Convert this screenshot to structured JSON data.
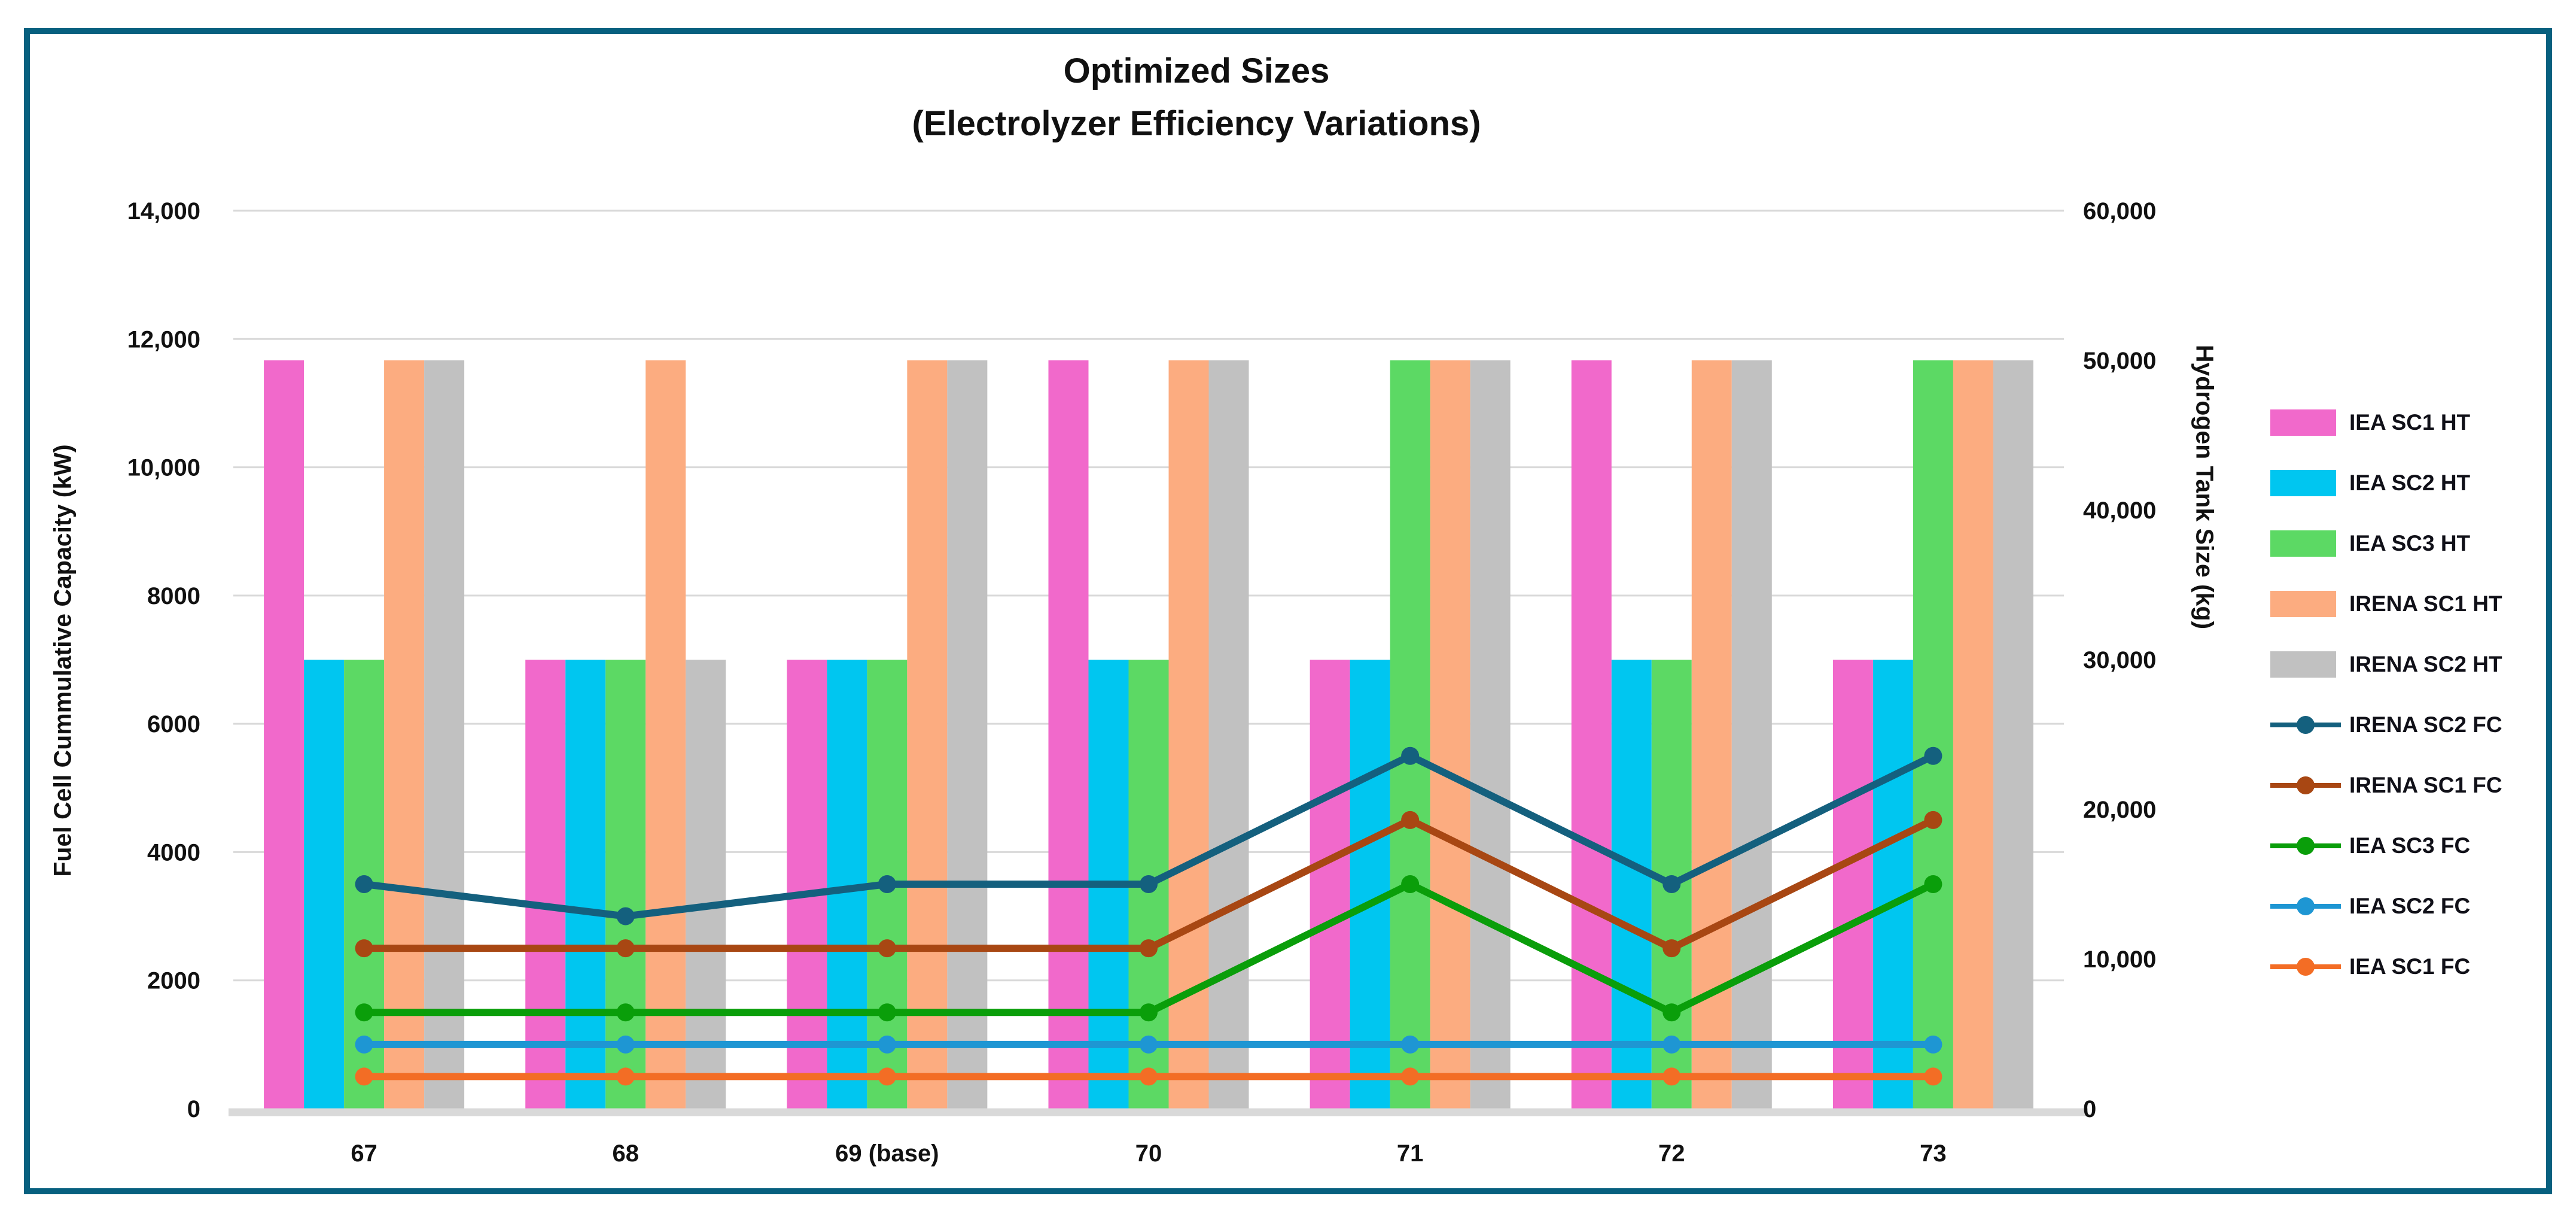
{
  "chart_data": {
    "type": "combo-bar-line",
    "title_line1": "Optimized Sizes",
    "title_line2": "(Electrolyzer Efficiency Variations)",
    "categories": [
      "67",
      "68",
      "69 (base)",
      "70",
      "71",
      "72",
      "73"
    ],
    "left_axis": {
      "label": "Fuel Cell Cummulative Capacity  (kW)",
      "min": 0,
      "max": 14000,
      "step": 2000,
      "tick_labels": [
        "0",
        "2000",
        "4000",
        "6000",
        "8000",
        "10,000",
        "12,000",
        "14,000"
      ]
    },
    "right_axis": {
      "label": "Hydrogen Tank Size (kg)",
      "min": 0,
      "max": 60000,
      "step": 10000,
      "tick_labels": [
        "0",
        "10,000",
        "20,000",
        "30,000",
        "40,000",
        "50,000",
        "60,000"
      ]
    },
    "grid": "horizontal-only",
    "legend_position": "right",
    "bar_series": [
      {
        "name": "IEA SC1 HT",
        "color": "#F169CB",
        "axis": "right",
        "values": [
          50000,
          30000,
          30000,
          50000,
          30000,
          50000,
          30000
        ]
      },
      {
        "name": "IEA SC2 HT",
        "color": "#00C6F0",
        "axis": "right",
        "values": [
          30000,
          30000,
          30000,
          30000,
          30000,
          30000,
          30000
        ]
      },
      {
        "name": "IEA SC3 HT",
        "color": "#5CD964",
        "axis": "right",
        "values": [
          30000,
          30000,
          30000,
          30000,
          50000,
          30000,
          50000
        ]
      },
      {
        "name": "IRENA SC1 HT",
        "color": "#FCAC80",
        "axis": "right",
        "values": [
          50000,
          50000,
          50000,
          50000,
          50000,
          50000,
          50000
        ]
      },
      {
        "name": "IRENA SC2 HT",
        "color": "#C1C1C1",
        "axis": "right",
        "values": [
          50000,
          30000,
          50000,
          50000,
          50000,
          50000,
          50000
        ]
      }
    ],
    "line_series": [
      {
        "name": "IRENA SC2 FC",
        "color": "#14607E",
        "axis": "left",
        "values": [
          3500,
          3000,
          3500,
          3500,
          5500,
          3500,
          5500
        ]
      },
      {
        "name": "IRENA SC1 FC",
        "color": "#A84713",
        "axis": "left",
        "values": [
          2500,
          2500,
          2500,
          2500,
          4500,
          2500,
          4500
        ]
      },
      {
        "name": "IEA SC3 FC",
        "color": "#0A9E0A",
        "axis": "left",
        "values": [
          1500,
          1500,
          1500,
          1500,
          3500,
          1500,
          3500
        ]
      },
      {
        "name": "IEA SC2 FC",
        "color": "#1E96D3",
        "axis": "left",
        "values": [
          1000,
          1000,
          1000,
          1000,
          1000,
          1000,
          1000
        ]
      },
      {
        "name": "IEA SC1 FC",
        "color": "#F36D25",
        "axis": "left",
        "values": [
          500,
          500,
          500,
          500,
          500,
          500,
          500
        ]
      }
    ],
    "colors": {
      "frame_border": "#07607F",
      "gridline": "#D9D9D9",
      "baseline": "#D9D9D9",
      "text": "#111111",
      "background": "#FFFFFF"
    }
  }
}
